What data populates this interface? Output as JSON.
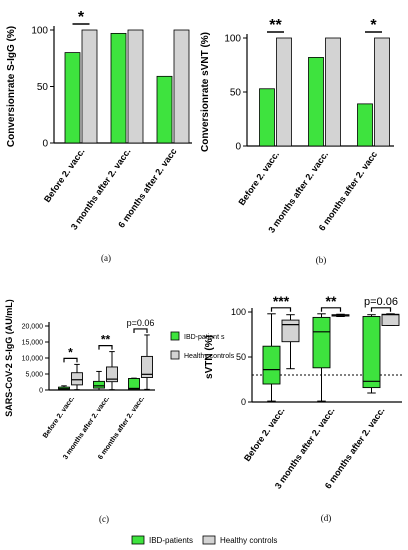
{
  "colors": {
    "ibd": "#3ee33e",
    "healthy": "#d3d3d3",
    "stroke": "#000000",
    "threshold": "#000000"
  },
  "chart_data": [
    {
      "id": "a",
      "type": "bar",
      "panel_label": "(a)",
      "ylabel": "Conversionrate S-IgG (%)",
      "ylim": [
        0,
        100
      ],
      "yticks": [
        "0",
        "50",
        "100"
      ],
      "categories": [
        "Before 2. vacc.",
        "3 months after 2. vacc.",
        "6 months after 2. vacc"
      ],
      "series": [
        {
          "values": [
            80,
            97,
            59
          ]
        },
        {
          "values": [
            100,
            100,
            100
          ]
        }
      ],
      "significance": [
        {
          "category": 0,
          "label": "*"
        }
      ]
    },
    {
      "id": "b",
      "type": "bar",
      "panel_label": "(b)",
      "ylabel": "Conversionrate sVNT (%)",
      "ylim": [
        0,
        100
      ],
      "yticks": [
        "0",
        "50",
        "100"
      ],
      "categories": [
        "Before 2. vacc.",
        "3 months after 2. vacc.",
        "6 months after 2. vacc"
      ],
      "series": [
        {
          "values": [
            53,
            82,
            39
          ]
        },
        {
          "values": [
            100,
            100,
            100
          ]
        }
      ],
      "significance": [
        {
          "category": 0,
          "label": "**"
        },
        {
          "category": 2,
          "label": "*"
        }
      ]
    },
    {
      "id": "c",
      "type": "box",
      "panel_label": "(c)",
      "ylabel": "SARS-CoV-2 S-IgG (AU/mL)",
      "ylim": [
        0,
        20000
      ],
      "yticks": [
        "0",
        "5,000",
        "10,000",
        "15,000",
        "20,000"
      ],
      "categories": [
        "Before 2. vacc.",
        "3 months after 2. vacc.",
        "6 months after 2. vacc."
      ],
      "legend": [
        "IBD-patient s",
        "Healthy controls"
      ],
      "series": [
        {
          "boxes": [
            {
              "min": 0,
              "q1": 150,
              "median": 400,
              "q3": 900,
              "max": 1300
            },
            {
              "min": 0,
              "q1": 600,
              "median": 1300,
              "q3": 2700,
              "max": 5800
            },
            {
              "min": 0,
              "q1": 150,
              "median": 500,
              "q3": 3600,
              "max": 3700
            }
          ]
        },
        {
          "boxes": [
            {
              "min": 100,
              "q1": 1600,
              "median": 3200,
              "q3": 5400,
              "max": 8000
            },
            {
              "min": 100,
              "q1": 2600,
              "median": 3400,
              "q3": 7200,
              "max": 12000
            },
            {
              "min": 200,
              "q1": 3900,
              "median": 4900,
              "q3": 10500,
              "max": 17200
            }
          ]
        }
      ],
      "significance": [
        {
          "category": 0,
          "label": "*"
        },
        {
          "category": 1,
          "label": "**"
        },
        {
          "category": 2,
          "label": "p=0.06"
        }
      ]
    },
    {
      "id": "d",
      "type": "box",
      "panel_label": "(d)",
      "ylabel": "sVTN (%)",
      "ylim": [
        0,
        100
      ],
      "yticks": [
        "0",
        "50",
        "100"
      ],
      "threshold": 30,
      "categories": [
        "Before 2. vacc.",
        "3 months after 2. vacc.",
        "6 months after 2. vacc."
      ],
      "series": [
        {
          "boxes": [
            {
              "min": 1,
              "q1": 20,
              "median": 36,
              "q3": 62,
              "max": 98
            },
            {
              "min": 1,
              "q1": 38,
              "median": 78,
              "q3": 94,
              "max": 98
            },
            {
              "min": 10,
              "q1": 16,
              "median": 23,
              "q3": 95,
              "max": 97
            }
          ]
        },
        {
          "boxes": [
            {
              "min": 37,
              "q1": 67,
              "median": 86,
              "q3": 91,
              "max": 97
            },
            {
              "min": 95,
              "q1": 95.5,
              "median": 96.5,
              "q3": 97,
              "max": 97.5
            },
            {
              "min": 85,
              "q1": 85,
              "median": 97,
              "q3": 97.5,
              "max": 98
            }
          ]
        }
      ],
      "significance": [
        {
          "category": 0,
          "label": "***"
        },
        {
          "category": 1,
          "label": "**"
        },
        {
          "category": 2,
          "label": "p=0.06"
        }
      ]
    }
  ],
  "bottom_legend": [
    "IBD-patients",
    "Healthy controls"
  ]
}
